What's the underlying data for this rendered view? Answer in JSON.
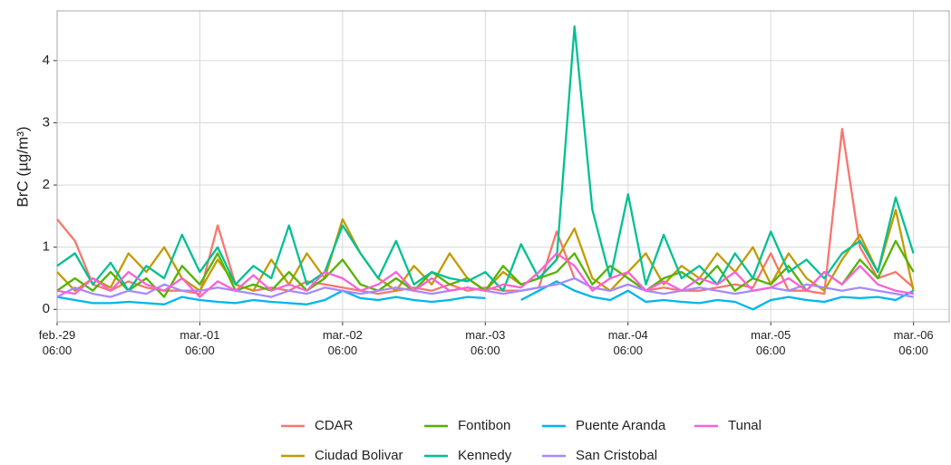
{
  "chart_data": {
    "type": "line",
    "y_label": "BrC (µg/m³)",
    "x": [
      0,
      3,
      6,
      9,
      12,
      15,
      18,
      21,
      24,
      27,
      30,
      33,
      36,
      39,
      42,
      45,
      48,
      51,
      54,
      57,
      60,
      63,
      66,
      69,
      72,
      75,
      78,
      81,
      84,
      87,
      90,
      93,
      96,
      99,
      102,
      105,
      108,
      111,
      114,
      117,
      120,
      123,
      126,
      129,
      132,
      135,
      138,
      141,
      144
    ],
    "xlim": [
      0,
      150
    ],
    "xticks": [
      {
        "value": 0,
        "label": "feb.-29\n06:00"
      },
      {
        "value": 24,
        "label": "mar.-01\n06:00"
      },
      {
        "value": 48,
        "label": "mar.-02\n06:00"
      },
      {
        "value": 72,
        "label": "mar.-03\n06:00"
      },
      {
        "value": 96,
        "label": "mar.-04\n06:00"
      },
      {
        "value": 120,
        "label": "mar.-05\n06:00"
      },
      {
        "value": 144,
        "label": "mar.-06\n06:00"
      }
    ],
    "ylim": [
      -0.2,
      4.8
    ],
    "yticks": [
      0,
      1,
      2,
      3,
      4
    ],
    "grid": true,
    "series": [
      {
        "name": "CDAR",
        "color": "#F8766D",
        "values": [
          1.45,
          1.1,
          0.4,
          0.3,
          0.45,
          0.35,
          0.3,
          0.3,
          0.25,
          1.35,
          0.4,
          0.3,
          0.35,
          0.3,
          0.45,
          0.4,
          0.35,
          0.3,
          0.25,
          0.3,
          0.35,
          0.3,
          0.4,
          0.3,
          0.35,
          0.3,
          0.3,
          0.35,
          1.25,
          0.5,
          0.35,
          0.3,
          0.4,
          0.3,
          0.35,
          0.3,
          0.3,
          0.35,
          0.4,
          0.35,
          0.9,
          0.3,
          0.3,
          0.25,
          2.9,
          1.0,
          0.5,
          0.6,
          0.35
        ]
      },
      {
        "name": "Ciudad Bolivar",
        "color": "#C49A00",
        "values": [
          0.6,
          0.3,
          0.5,
          0.35,
          0.9,
          0.6,
          1.0,
          0.5,
          0.3,
          0.8,
          0.4,
          0.3,
          0.8,
          0.4,
          0.9,
          0.5,
          1.45,
          0.9,
          0.5,
          0.3,
          0.7,
          0.4,
          0.9,
          0.5,
          0.3,
          0.6,
          0.4,
          0.5,
          0.8,
          1.3,
          0.5,
          0.3,
          0.6,
          0.9,
          0.4,
          0.7,
          0.5,
          0.9,
          0.6,
          1.0,
          0.4,
          0.9,
          0.5,
          0.3,
          0.8,
          1.2,
          0.6,
          1.6,
          0.3
        ]
      },
      {
        "name": "Fontibon",
        "color": "#53B400",
        "values": [
          0.3,
          0.5,
          0.3,
          0.6,
          0.3,
          0.5,
          0.2,
          0.7,
          0.4,
          0.9,
          0.3,
          0.4,
          0.3,
          0.6,
          0.3,
          0.5,
          0.8,
          0.4,
          0.3,
          0.5,
          0.3,
          0.6,
          0.4,
          0.5,
          0.3,
          0.7,
          0.4,
          0.5,
          0.6,
          0.9,
          0.4,
          0.7,
          0.5,
          0.3,
          0.5,
          0.6,
          0.4,
          0.7,
          0.3,
          0.5,
          0.4,
          0.7,
          0.3,
          0.6,
          0.4,
          0.8,
          0.5,
          1.1,
          0.6
        ]
      },
      {
        "name": "Kennedy",
        "color": "#00C094",
        "values": [
          0.7,
          0.9,
          0.4,
          0.75,
          0.3,
          0.7,
          0.5,
          1.2,
          0.6,
          1.0,
          0.4,
          0.7,
          0.5,
          1.35,
          0.4,
          0.6,
          1.35,
          0.9,
          0.5,
          1.1,
          0.4,
          0.6,
          0.5,
          0.45,
          0.6,
          0.3,
          1.05,
          0.5,
          0.8,
          4.55,
          1.6,
          0.5,
          1.85,
          0.4,
          1.2,
          0.5,
          0.7,
          0.4,
          0.9,
          0.5,
          1.25,
          0.6,
          0.8,
          0.5,
          0.9,
          1.1,
          0.6,
          1.8,
          0.9
        ]
      },
      {
        "name": "Puente Aranda",
        "color": "#00B6EB",
        "values": [
          0.2,
          0.15,
          0.1,
          0.1,
          0.12,
          0.1,
          0.08,
          0.2,
          0.15,
          0.12,
          0.1,
          0.15,
          0.12,
          0.1,
          0.08,
          0.15,
          0.3,
          0.18,
          0.15,
          0.2,
          0.15,
          0.12,
          0.15,
          0.2,
          0.18,
          null,
          0.15,
          0.3,
          0.45,
          0.3,
          0.2,
          0.15,
          0.3,
          0.12,
          0.15,
          0.12,
          0.1,
          0.15,
          0.12,
          0.0,
          0.15,
          0.2,
          0.15,
          0.12,
          0.2,
          0.18,
          0.2,
          0.15,
          0.3
        ]
      },
      {
        "name": "San Cristobal",
        "color": "#A58AFF",
        "values": [
          0.2,
          0.35,
          0.25,
          0.2,
          0.3,
          0.25,
          0.4,
          0.3,
          0.3,
          0.35,
          0.3,
          0.25,
          0.2,
          0.3,
          0.25,
          0.35,
          0.3,
          0.25,
          0.3,
          0.35,
          0.3,
          0.25,
          0.3,
          0.35,
          0.3,
          0.25,
          0.3,
          0.35,
          0.4,
          0.5,
          0.35,
          0.3,
          0.4,
          0.3,
          0.25,
          0.3,
          0.35,
          0.3,
          0.25,
          0.3,
          0.35,
          0.3,
          0.4,
          0.35,
          0.3,
          0.35,
          0.3,
          0.25,
          0.2
        ]
      },
      {
        "name": "Tunal",
        "color": "#FB61D7",
        "values": [
          0.3,
          0.25,
          0.5,
          0.3,
          0.6,
          0.4,
          0.3,
          0.5,
          0.2,
          0.45,
          0.3,
          0.55,
          0.3,
          0.4,
          0.3,
          0.6,
          0.5,
          0.3,
          0.4,
          0.6,
          0.3,
          0.5,
          0.3,
          0.35,
          0.3,
          0.4,
          0.35,
          0.6,
          0.9,
          0.7,
          0.3,
          0.5,
          0.6,
          0.3,
          0.45,
          0.3,
          0.5,
          0.4,
          0.6,
          0.3,
          0.35,
          0.5,
          0.3,
          0.6,
          0.4,
          0.7,
          0.4,
          0.3,
          0.25
        ]
      }
    ]
  }
}
